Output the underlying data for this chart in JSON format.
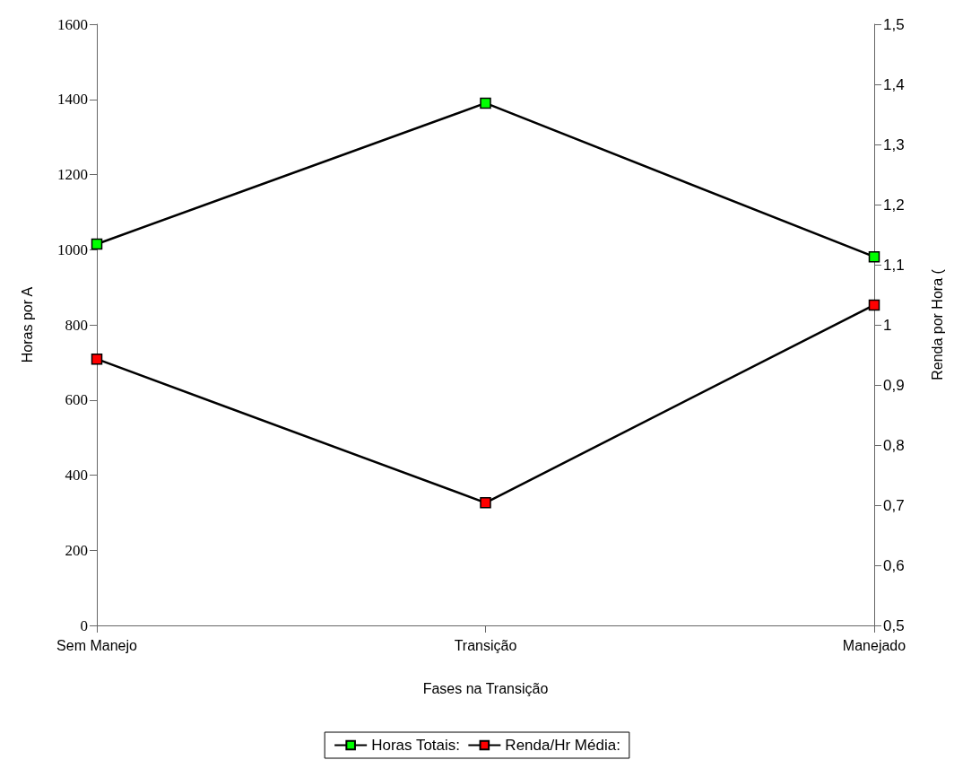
{
  "chart_data": {
    "type": "line",
    "xlabel": "Fases na Transição",
    "ylabel": "Horas por A",
    "y2label": "Renda por Hora (",
    "categories": [
      "Sem Manejo",
      "Transição",
      "Manejado"
    ],
    "series": [
      {
        "name": "Horas Totais:",
        "color": "#00ff00",
        "values": [
          1015,
          1390,
          981
        ]
      },
      {
        "name": "Renda/Hr Média:",
        "color": "#ff0000",
        "values": [
          0.943,
          0.704,
          1.033
        ],
        "axis": "y2"
      }
    ],
    "ylim": [
      0,
      1600
    ],
    "yticks": [
      0,
      200,
      400,
      600,
      800,
      1000,
      1200,
      1400,
      1600
    ],
    "y2lim": [
      0.5,
      1.5
    ],
    "y2ticks": [
      {
        "value": 0.5,
        "label": "0,5"
      },
      {
        "value": 0.6,
        "label": "0,6"
      },
      {
        "value": 0.7,
        "label": "0,7"
      },
      {
        "value": 0.8,
        "label": "0,8"
      },
      {
        "value": 0.9,
        "label": "0,9"
      },
      {
        "value": 1,
        "label": "1"
      },
      {
        "value": 1.1,
        "label": "1,1"
      },
      {
        "value": 1.2,
        "label": "1,2"
      },
      {
        "value": 1.3,
        "label": "1,3"
      },
      {
        "value": 1.4,
        "label": "1,4"
      },
      {
        "value": 1.5,
        "label": "1,5"
      }
    ],
    "grid": false,
    "legend": "bottom",
    "marker": "square",
    "line_style": "solid"
  }
}
